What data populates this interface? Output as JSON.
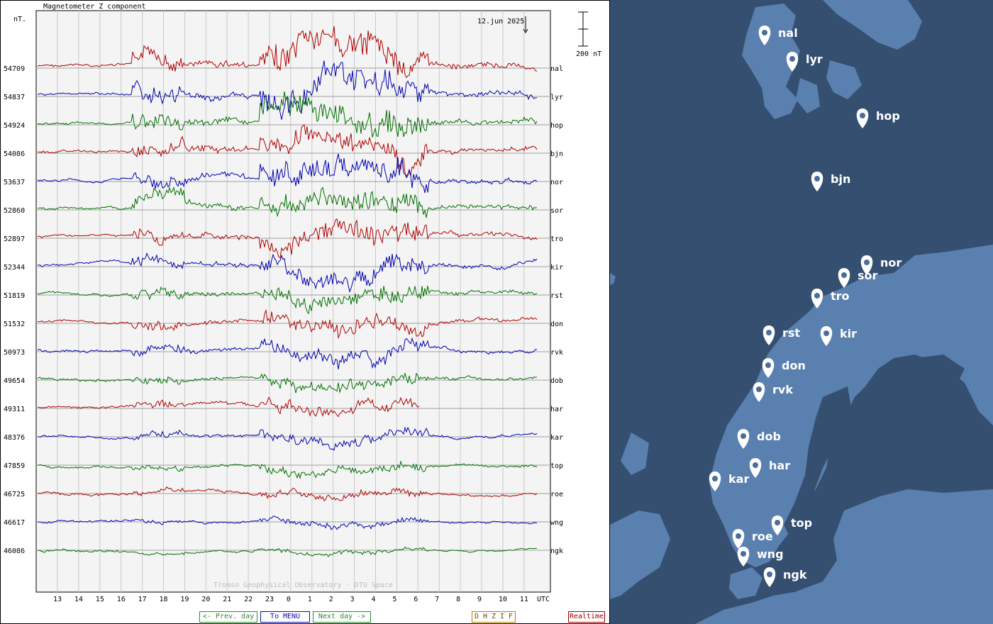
{
  "plot": {
    "title": "Magnetometer Z component",
    "unit": "nT.",
    "date": "12.jun 2025",
    "scale_label": "200 nT",
    "footer": "Tromso Geophysical Observatory - DTU Space",
    "utc_label": "UTC",
    "x_ticks": [
      "13",
      "14",
      "15",
      "16",
      "17",
      "18",
      "19",
      "20",
      "21",
      "22",
      "23",
      "0",
      "1",
      "2",
      "3",
      "4",
      "5",
      "6",
      "7",
      "8",
      "9",
      "10",
      "11"
    ],
    "stations": [
      {
        "code": "nal",
        "value": "54709",
        "color": "#b00000"
      },
      {
        "code": "lyr",
        "value": "54837",
        "color": "#0000b0"
      },
      {
        "code": "hop",
        "value": "54924",
        "color": "#007000"
      },
      {
        "code": "bjn",
        "value": "54086",
        "color": "#b00000"
      },
      {
        "code": "nor",
        "value": "53637",
        "color": "#0000b0"
      },
      {
        "code": "sor",
        "value": "52860",
        "color": "#007000"
      },
      {
        "code": "tro",
        "value": "52897",
        "color": "#b00000"
      },
      {
        "code": "kir",
        "value": "52344",
        "color": "#0000b0"
      },
      {
        "code": "rst",
        "value": "51819",
        "color": "#007000"
      },
      {
        "code": "don",
        "value": "51532",
        "color": "#b00000"
      },
      {
        "code": "rvk",
        "value": "50973",
        "color": "#0000b0"
      },
      {
        "code": "dob",
        "value": "49654",
        "color": "#007000"
      },
      {
        "code": "har",
        "value": "49311",
        "color": "#b00000"
      },
      {
        "code": "kar",
        "value": "48376",
        "color": "#0000b0"
      },
      {
        "code": "top",
        "value": "47859",
        "color": "#007000"
      },
      {
        "code": "roe",
        "value": "46725",
        "color": "#b00000"
      },
      {
        "code": "wng",
        "value": "46617",
        "color": "#0000b0"
      },
      {
        "code": "ngk",
        "value": "46086",
        "color": "#007000"
      }
    ]
  },
  "nav": {
    "prev": "<- Prev. day",
    "menu": "To MENU",
    "next": "Next day ->",
    "components": [
      "D",
      "H",
      "Z",
      "I",
      "F"
    ],
    "realtime": "Realtime"
  },
  "map": {
    "markers": [
      {
        "code": "nal"
      },
      {
        "code": "lyr"
      },
      {
        "code": "hop"
      },
      {
        "code": "bjn"
      },
      {
        "code": "nor"
      },
      {
        "code": "sor"
      },
      {
        "code": "tro"
      },
      {
        "code": "rst"
      },
      {
        "code": "kir"
      },
      {
        "code": "don"
      },
      {
        "code": "rvk"
      },
      {
        "code": "dob"
      },
      {
        "code": "har"
      },
      {
        "code": "kar"
      },
      {
        "code": "top"
      },
      {
        "code": "roe"
      },
      {
        "code": "wng"
      },
      {
        "code": "ngk"
      }
    ]
  }
}
